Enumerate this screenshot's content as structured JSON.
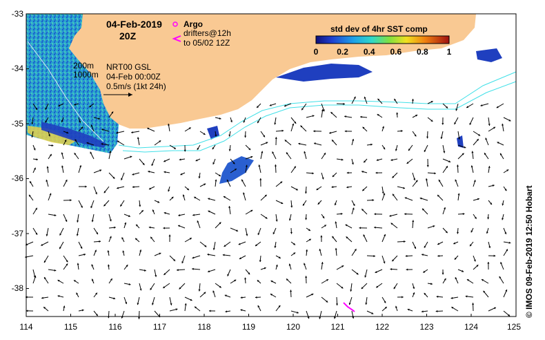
{
  "title": {
    "date": "04-Feb-2019",
    "time": "20Z"
  },
  "legend": {
    "argo": "Argo",
    "drifters_line1": "drifters@12h",
    "drifters_line2": "to 05/02 12Z"
  },
  "colorbar": {
    "title": "std dev of 4hr SST comp",
    "ticks": [
      "0",
      "0.2",
      "0.4",
      "0.6",
      "0.8",
      "1"
    ]
  },
  "annotations": {
    "iso200": "200m",
    "iso1000": "1000m",
    "product": "NRT00 GSL",
    "product_date": "04-Feb 00:00Z",
    "scale": "0.5m/s (1kt 24h)"
  },
  "credit": "© IMOS 09-Feb-2019 12:50 Hobart",
  "axes": {
    "x_ticks": [
      "114",
      "115",
      "116",
      "117",
      "118",
      "119",
      "120",
      "121",
      "122",
      "123",
      "124",
      "125"
    ],
    "y_ticks": [
      "-33",
      "-34",
      "-35",
      "-36",
      "-37",
      "-38"
    ],
    "x_range": [
      114,
      125
    ],
    "y_range": [
      -38.5,
      -33
    ]
  },
  "colors": {
    "land": "#F9C993",
    "sst_low": "#1f3fbf",
    "sst_mid": "#2bb0d8",
    "sst_high": "#e8d24a",
    "contour": "#40e0e8",
    "argo": "#ff00ff"
  }
}
